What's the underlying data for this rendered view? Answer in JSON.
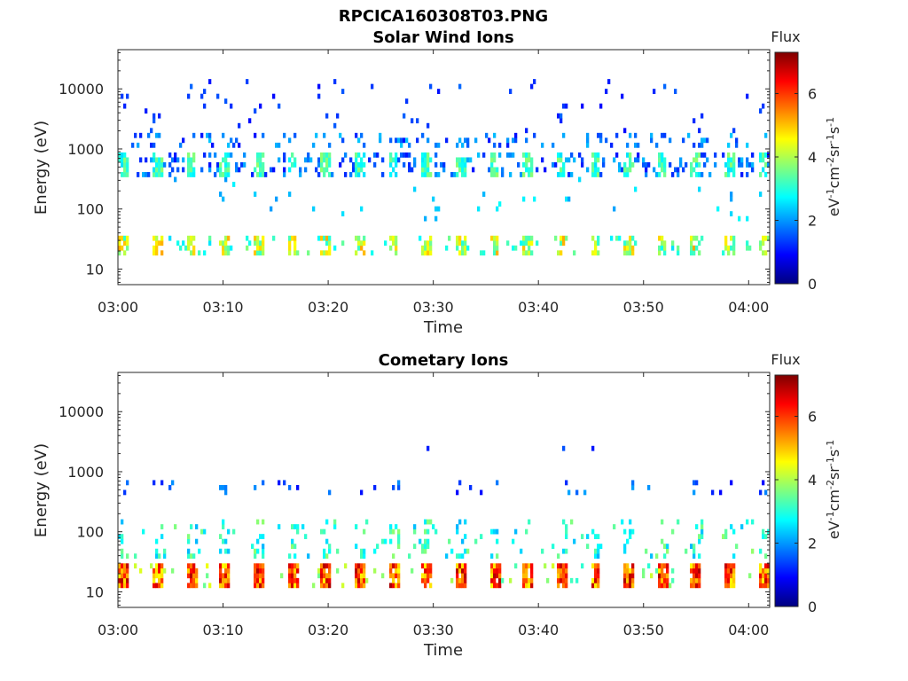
{
  "figure": {
    "title": "RPCICA160308T03.PNG"
  },
  "colormap": [
    "#00007f",
    "#0000ff",
    "#007fff",
    "#00ffff",
    "#7fff7f",
    "#ffff00",
    "#ff7f00",
    "#ff0000",
    "#7f0000"
  ],
  "chart_data": [
    {
      "type": "heatmap",
      "title": "Solar Wind Ions",
      "xlabel": "Time",
      "ylabel": "Energy (eV)",
      "y_scale": "log",
      "x_ticks": [
        "03:00",
        "03:10",
        "03:20",
        "03:30",
        "03:40",
        "03:50",
        "04:00"
      ],
      "y_ticks": [
        "10",
        "100",
        "1000",
        "10000"
      ],
      "colorbar": {
        "label": "Flux",
        "units": "eV-1cm-2sr-1s-1",
        "ticks": [
          "0",
          "2",
          "4",
          "6"
        ],
        "range": [
          0,
          7.3
        ]
      },
      "bands": [
        {
          "energy_range": [
            1100,
            1600
          ],
          "typical_flux": 2,
          "description": "sparse"
        },
        {
          "energy_range": [
            350,
            800
          ],
          "typical_flux": 3,
          "description": "dense"
        },
        {
          "energy_range": [
            18,
            35
          ],
          "typical_flux": 4.2,
          "description": "periodic bursts"
        }
      ]
    },
    {
      "type": "heatmap",
      "title": "Cometary Ions",
      "xlabel": "Time",
      "ylabel": "Energy (eV)",
      "y_scale": "log",
      "x_ticks": [
        "03:00",
        "03:10",
        "03:20",
        "03:30",
        "03:40",
        "03:50",
        "04:00"
      ],
      "y_ticks": [
        "10",
        "100",
        "1000",
        "10000"
      ],
      "colorbar": {
        "label": "Flux",
        "units": "eV-1cm-2sr-1s-1",
        "ticks": [
          "0",
          "2",
          "4",
          "6"
        ],
        "range": [
          0,
          7.3
        ]
      },
      "bands": [
        {
          "energy_range": [
            12,
            32
          ],
          "typical_flux": 5.8,
          "description": "periodic bursts every ~3.2 min"
        },
        {
          "energy_range": [
            40,
            150
          ],
          "typical_flux": 3,
          "description": "sparse"
        },
        {
          "energy_range": [
            400,
            700
          ],
          "typical_flux": 1.5,
          "description": "sparse"
        },
        {
          "energy_range": [
            2200,
            2600
          ],
          "typical_flux": 1.2,
          "description": "sparse"
        }
      ]
    }
  ]
}
